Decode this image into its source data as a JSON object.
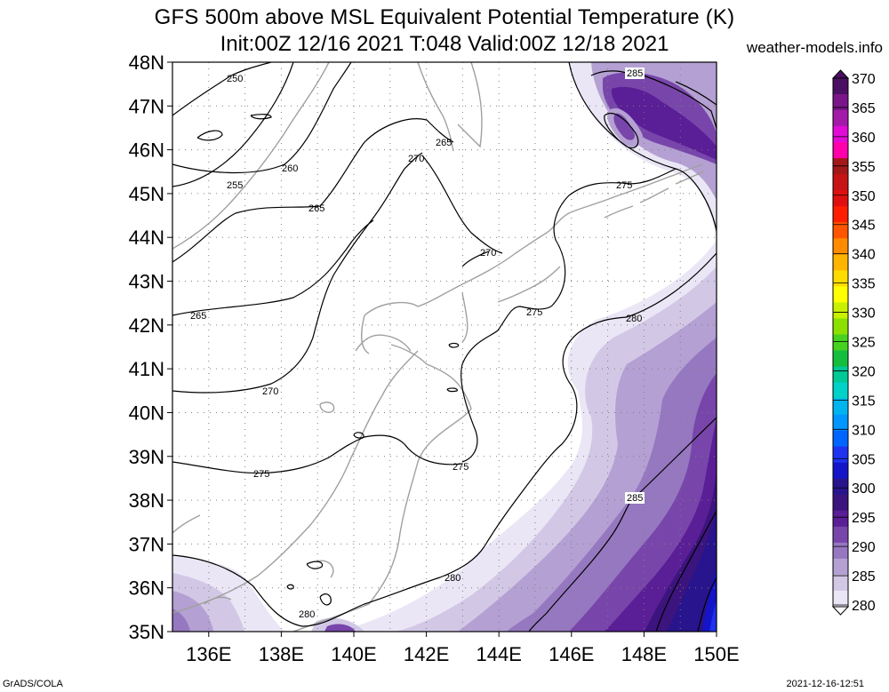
{
  "title": "GFS 500m above MSL Equivalent Potential Temperature (K)",
  "subtitle": "Init:00Z 12/16 2021 T:048 Valid:00Z 12/18 2021",
  "site": "weather-models.info",
  "footer": {
    "left": "GrADS/COLA",
    "right": "2021-12-16-12:51"
  },
  "map": {
    "lat_labels": [
      "48N",
      "47N",
      "46N",
      "45N",
      "44N",
      "43N",
      "42N",
      "41N",
      "40N",
      "39N",
      "38N",
      "37N",
      "36N",
      "35N"
    ],
    "lon_labels": [
      "136E",
      "138E",
      "140E",
      "142E",
      "144E",
      "146E",
      "148E",
      "150E"
    ],
    "lat_range": [
      35,
      48
    ],
    "lon_range": [
      135,
      150
    ],
    "gridlines": "dotted",
    "contour_labels": [
      "250",
      "255",
      "260",
      "265",
      "265",
      "265",
      "270",
      "270",
      "270",
      "275",
      "275",
      "275",
      "275",
      "280",
      "280",
      "280",
      "285",
      "285"
    ]
  },
  "colorbar": {
    "ticks": [
      "370",
      "365",
      "360",
      "355",
      "350",
      "345",
      "340",
      "335",
      "330",
      "325",
      "320",
      "315",
      "310",
      "305",
      "300",
      "295",
      "290",
      "285",
      "280"
    ],
    "colors": [
      "#4b0f63",
      "#7a168a",
      "#a41aa8",
      "#e10bd6",
      "#ff00aa",
      "#a31818",
      "#c61414",
      "#e01010",
      "#ff1e00",
      "#ff5500",
      "#ff8c00",
      "#ffb400",
      "#ffdc00",
      "#ffff00",
      "#c8f000",
      "#8ce000",
      "#46d21e",
      "#14be3c",
      "#00c896",
      "#00d2c8",
      "#00b4f0",
      "#0096ff",
      "#0064ff",
      "#1e32f0",
      "#1414c8",
      "#28148c",
      "#3c147d",
      "#5a1e96",
      "#7846aa",
      "#9678c0",
      "#b4a0d2",
      "#d2c8e6",
      "#ebe6f5"
    ]
  }
}
